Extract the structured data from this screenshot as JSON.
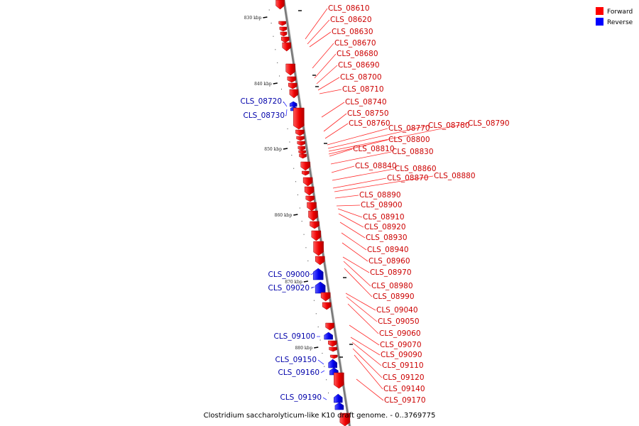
{
  "caption": "Clostridium saccharolyticum-like K10 draft genome. - 0..3769775",
  "legend": [
    {
      "label": "Forward",
      "color": "#ff0000"
    },
    {
      "label": "Reverse",
      "color": "#0000ff"
    }
  ],
  "colors": {
    "forward": "#ff0000",
    "forward_dark": "#c00000",
    "reverse": "#0000ee",
    "axis": "#888888",
    "forward_label": "#cc0000",
    "reverse_label": "#0000aa"
  },
  "ticks": [
    {
      "label": "830 kbp",
      "kbp": 830
    },
    {
      "label": "840 kbp",
      "kbp": 840
    },
    {
      "label": "850 kbp",
      "kbp": 850
    },
    {
      "label": "860 kbp",
      "kbp": 860
    },
    {
      "label": "870 kbp",
      "kbp": 870
    },
    {
      "label": "880 kbp",
      "kbp": 880
    }
  ],
  "genes": [
    {
      "id": "CLS_08610",
      "strand": "forward"
    },
    {
      "id": "CLS_08620",
      "strand": "forward"
    },
    {
      "id": "CLS_08630",
      "strand": "forward"
    },
    {
      "id": "CLS_08670",
      "strand": "forward"
    },
    {
      "id": "CLS_08680",
      "strand": "forward"
    },
    {
      "id": "CLS_08690",
      "strand": "forward"
    },
    {
      "id": "CLS_08700",
      "strand": "forward"
    },
    {
      "id": "CLS_08710",
      "strand": "forward"
    },
    {
      "id": "CLS_08720",
      "strand": "reverse"
    },
    {
      "id": "CLS_08730",
      "strand": "reverse"
    },
    {
      "id": "CLS_08740",
      "strand": "forward"
    },
    {
      "id": "CLS_08750",
      "strand": "forward"
    },
    {
      "id": "CLS_08760",
      "strand": "forward"
    },
    {
      "id": "CLS_08770",
      "strand": "forward"
    },
    {
      "id": "CLS_08780",
      "strand": "forward"
    },
    {
      "id": "CLS_08790",
      "strand": "forward"
    },
    {
      "id": "CLS_08800",
      "strand": "forward"
    },
    {
      "id": "CLS_08810",
      "strand": "forward"
    },
    {
      "id": "CLS_08830",
      "strand": "forward"
    },
    {
      "id": "CLS_08840",
      "strand": "forward"
    },
    {
      "id": "CLS_08860",
      "strand": "forward"
    },
    {
      "id": "CLS_08870",
      "strand": "forward"
    },
    {
      "id": "CLS_08880",
      "strand": "forward"
    },
    {
      "id": "CLS_08890",
      "strand": "forward"
    },
    {
      "id": "CLS_08900",
      "strand": "forward"
    },
    {
      "id": "CLS_08910",
      "strand": "forward"
    },
    {
      "id": "CLS_08920",
      "strand": "forward"
    },
    {
      "id": "CLS_08930",
      "strand": "forward"
    },
    {
      "id": "CLS_08940",
      "strand": "forward"
    },
    {
      "id": "CLS_08960",
      "strand": "forward"
    },
    {
      "id": "CLS_08970",
      "strand": "forward"
    },
    {
      "id": "CLS_08980",
      "strand": "forward"
    },
    {
      "id": "CLS_08990",
      "strand": "forward"
    },
    {
      "id": "CLS_09000",
      "strand": "reverse"
    },
    {
      "id": "CLS_09020",
      "strand": "reverse"
    },
    {
      "id": "CLS_09040",
      "strand": "forward"
    },
    {
      "id": "CLS_09050",
      "strand": "forward"
    },
    {
      "id": "CLS_09060",
      "strand": "forward"
    },
    {
      "id": "CLS_09070",
      "strand": "forward"
    },
    {
      "id": "CLS_09090",
      "strand": "forward"
    },
    {
      "id": "CLS_09100",
      "strand": "reverse"
    },
    {
      "id": "CLS_09110",
      "strand": "forward"
    },
    {
      "id": "CLS_09120",
      "strand": "forward"
    },
    {
      "id": "CLS_09140",
      "strand": "forward"
    },
    {
      "id": "CLS_09150",
      "strand": "reverse"
    },
    {
      "id": "CLS_09160",
      "strand": "reverse"
    },
    {
      "id": "CLS_09170",
      "strand": "forward"
    },
    {
      "id": "CLS_09190",
      "strand": "reverse"
    }
  ]
}
